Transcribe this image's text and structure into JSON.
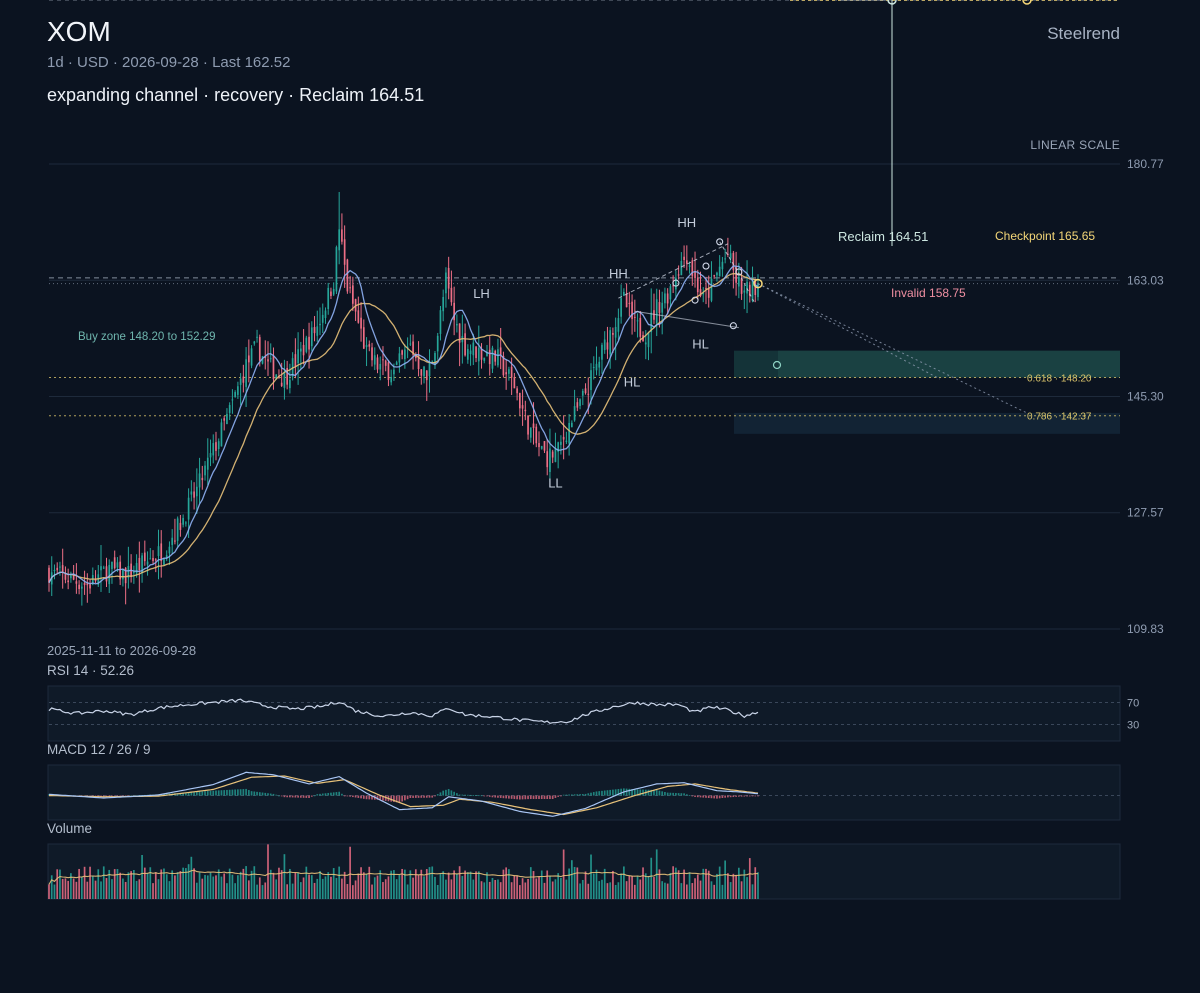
{
  "header": {
    "ticker": "XOM",
    "interval": "1d",
    "currency": "USD",
    "date": "2026-09-28",
    "last": "Last 162.52",
    "subtitle": "1d · USD · 2026-09-28 · Last 162.52",
    "headline": "expanding channel · recovery · Reclaim 164.51",
    "brand": "Steelrend",
    "scale_label": "LINEAR SCALE",
    "range": "2025-11-11 to 2026-09-28"
  },
  "colors": {
    "background": "#0b1320",
    "up": "#26a69a",
    "down": "#ef6f86",
    "ma_fast": "#8fb2f5",
    "ma_slow": "#e8c27a",
    "target": "#f5d778",
    "zone": "#1f4d4a"
  },
  "chart_data": [
    {
      "type": "candlestick",
      "title": "XOM",
      "x_range": [
        "2025-11-11",
        "2026-09-28"
      ],
      "ylim": [
        109.83,
        180.77
      ],
      "y_ticks": [
        109.83,
        127.57,
        145.3,
        163.03,
        180.77
      ],
      "grid": true,
      "ohlc_anchors": [
        {
          "i": 0,
          "c": 118.5
        },
        {
          "i": 8,
          "c": 117.5
        },
        {
          "i": 14,
          "c": 116.5
        },
        {
          "i": 22,
          "c": 119
        },
        {
          "i": 28,
          "c": 118
        },
        {
          "i": 35,
          "c": 120
        },
        {
          "i": 42,
          "c": 122
        },
        {
          "i": 48,
          "c": 126
        },
        {
          "i": 54,
          "c": 131
        },
        {
          "i": 60,
          "c": 137
        },
        {
          "i": 66,
          "c": 143
        },
        {
          "i": 72,
          "c": 150
        },
        {
          "i": 76,
          "c": 153
        },
        {
          "i": 80,
          "c": 150
        },
        {
          "i": 86,
          "c": 148
        },
        {
          "i": 92,
          "c": 152
        },
        {
          "i": 98,
          "c": 156
        },
        {
          "i": 104,
          "c": 163
        },
        {
          "i": 106,
          "c": 171
        },
        {
          "i": 109,
          "c": 162
        },
        {
          "i": 112,
          "c": 158
        },
        {
          "i": 116,
          "c": 152
        },
        {
          "i": 120,
          "c": 150
        },
        {
          "i": 126,
          "c": 149
        },
        {
          "i": 132,
          "c": 153
        },
        {
          "i": 138,
          "c": 148
        },
        {
          "i": 142,
          "c": 155
        },
        {
          "i": 145,
          "c": 163
        },
        {
          "i": 148,
          "c": 157
        },
        {
          "i": 152,
          "c": 153
        },
        {
          "i": 158,
          "c": 152
        },
        {
          "i": 164,
          "c": 151
        },
        {
          "i": 170,
          "c": 147
        },
        {
          "i": 174,
          "c": 142
        },
        {
          "i": 178,
          "c": 138
        },
        {
          "i": 182,
          "c": 136
        },
        {
          "i": 186,
          "c": 137
        },
        {
          "i": 190,
          "c": 141
        },
        {
          "i": 194,
          "c": 144
        },
        {
          "i": 198,
          "c": 148
        },
        {
          "i": 202,
          "c": 152
        },
        {
          "i": 206,
          "c": 156
        },
        {
          "i": 210,
          "c": 160
        },
        {
          "i": 214,
          "c": 156
        },
        {
          "i": 218,
          "c": 155
        },
        {
          "i": 222,
          "c": 159
        },
        {
          "i": 226,
          "c": 161
        },
        {
          "i": 230,
          "c": 165
        },
        {
          "i": 233,
          "c": 167
        },
        {
          "i": 236,
          "c": 163
        },
        {
          "i": 239,
          "c": 160
        },
        {
          "i": 242,
          "c": 162
        },
        {
          "i": 245,
          "c": 165
        },
        {
          "i": 248,
          "c": 167
        },
        {
          "i": 251,
          "c": 163
        },
        {
          "i": 254,
          "c": 161
        },
        {
          "i": 257,
          "c": 162
        },
        {
          "i": 259,
          "c": 162.52
        }
      ],
      "bar_count": 260,
      "moving_averages": [
        "fast",
        "slow"
      ],
      "swing_labels": [
        {
          "label": "LL",
          "i": 185,
          "price": 134.2,
          "pos": "below"
        },
        {
          "label": "LH",
          "i": 158,
          "price": 157.6,
          "pos": "above"
        },
        {
          "label": "HH",
          "i": 208,
          "price": 160.6,
          "pos": "above"
        },
        {
          "label": "HL",
          "i": 213,
          "price": 149.6,
          "pos": "below"
        },
        {
          "label": "HH",
          "i": 233,
          "price": 168.4,
          "pos": "above"
        },
        {
          "label": "HL",
          "i": 238,
          "price": 155.4,
          "pos": "below"
        }
      ],
      "levels": {
        "reclaim": {
          "label": "Reclaim 164.51",
          "value": 164.51
        },
        "checkpoint": {
          "label": "Checkpoint 165.65",
          "value": 165.65
        },
        "invalid": {
          "label": "Invalid 158.75",
          "value": 158.75
        },
        "resistance": 164.0,
        "last": 162.52
      },
      "zones": [
        {
          "label": "Buy zone 148.20 to 152.29",
          "from": 148.2,
          "to": 152.29
        },
        {
          "label": "",
          "from": 139.6,
          "to": 142.8
        }
      ],
      "fib_levels": [
        {
          "label": "0.618 · 148.20",
          "value": 148.2
        },
        {
          "label": "0.786 · 142.37",
          "value": 142.37
        }
      ]
    },
    {
      "type": "line",
      "title": "RSI 14 · 52.26",
      "last": 52.26,
      "ylim": [
        0,
        100
      ],
      "bands": [
        {
          "label": "70",
          "value": 70
        },
        {
          "label": "30",
          "value": 30
        }
      ],
      "anchors": [
        {
          "i": 0,
          "v": 58
        },
        {
          "i": 10,
          "v": 50
        },
        {
          "i": 20,
          "v": 55
        },
        {
          "i": 30,
          "v": 48
        },
        {
          "i": 40,
          "v": 60
        },
        {
          "i": 50,
          "v": 66
        },
        {
          "i": 60,
          "v": 70
        },
        {
          "i": 70,
          "v": 74
        },
        {
          "i": 80,
          "v": 63
        },
        {
          "i": 90,
          "v": 58
        },
        {
          "i": 100,
          "v": 63
        },
        {
          "i": 106,
          "v": 72
        },
        {
          "i": 112,
          "v": 55
        },
        {
          "i": 122,
          "v": 45
        },
        {
          "i": 132,
          "v": 52
        },
        {
          "i": 140,
          "v": 46
        },
        {
          "i": 146,
          "v": 60
        },
        {
          "i": 152,
          "v": 48
        },
        {
          "i": 162,
          "v": 44
        },
        {
          "i": 172,
          "v": 38
        },
        {
          "i": 182,
          "v": 34
        },
        {
          "i": 190,
          "v": 36
        },
        {
          "i": 196,
          "v": 48
        },
        {
          "i": 206,
          "v": 62
        },
        {
          "i": 214,
          "v": 70
        },
        {
          "i": 222,
          "v": 66
        },
        {
          "i": 230,
          "v": 66
        },
        {
          "i": 236,
          "v": 52
        },
        {
          "i": 242,
          "v": 62
        },
        {
          "i": 248,
          "v": 56
        },
        {
          "i": 254,
          "v": 46
        },
        {
          "i": 259,
          "v": 52.26
        }
      ]
    },
    {
      "type": "line",
      "title": "MACD 12 / 26 / 9",
      "ylim": [
        -4,
        5
      ],
      "macd_anchors": [
        {
          "i": 0,
          "v": 0.2
        },
        {
          "i": 20,
          "v": -0.4
        },
        {
          "i": 40,
          "v": 0.1
        },
        {
          "i": 60,
          "v": 1.8
        },
        {
          "i": 72,
          "v": 3.8
        },
        {
          "i": 82,
          "v": 3.4
        },
        {
          "i": 95,
          "v": 1.9
        },
        {
          "i": 106,
          "v": 3.1
        },
        {
          "i": 116,
          "v": 0.4
        },
        {
          "i": 128,
          "v": -2.3
        },
        {
          "i": 140,
          "v": -2.0
        },
        {
          "i": 146,
          "v": -0.2
        },
        {
          "i": 158,
          "v": -0.9
        },
        {
          "i": 172,
          "v": -2.6
        },
        {
          "i": 184,
          "v": -3.4
        },
        {
          "i": 196,
          "v": -2.1
        },
        {
          "i": 210,
          "v": 0.6
        },
        {
          "i": 222,
          "v": 1.9
        },
        {
          "i": 232,
          "v": 2.1
        },
        {
          "i": 244,
          "v": 0.8
        },
        {
          "i": 252,
          "v": 0.6
        },
        {
          "i": 259,
          "v": 0.3
        }
      ],
      "signal_anchors": [
        {
          "i": 0,
          "v": 0.0
        },
        {
          "i": 20,
          "v": -0.2
        },
        {
          "i": 40,
          "v": -0.1
        },
        {
          "i": 60,
          "v": 1.0
        },
        {
          "i": 74,
          "v": 3.0
        },
        {
          "i": 86,
          "v": 3.2
        },
        {
          "i": 98,
          "v": 2.0
        },
        {
          "i": 108,
          "v": 2.6
        },
        {
          "i": 120,
          "v": 0.2
        },
        {
          "i": 132,
          "v": -1.8
        },
        {
          "i": 144,
          "v": -1.6
        },
        {
          "i": 150,
          "v": -0.6
        },
        {
          "i": 162,
          "v": -1.1
        },
        {
          "i": 176,
          "v": -2.3
        },
        {
          "i": 188,
          "v": -3.1
        },
        {
          "i": 200,
          "v": -2.0
        },
        {
          "i": 214,
          "v": 0.0
        },
        {
          "i": 226,
          "v": 1.5
        },
        {
          "i": 236,
          "v": 1.9
        },
        {
          "i": 248,
          "v": 1.0
        },
        {
          "i": 259,
          "v": 0.4
        }
      ]
    },
    {
      "type": "bar",
      "title": "Volume"
    }
  ]
}
